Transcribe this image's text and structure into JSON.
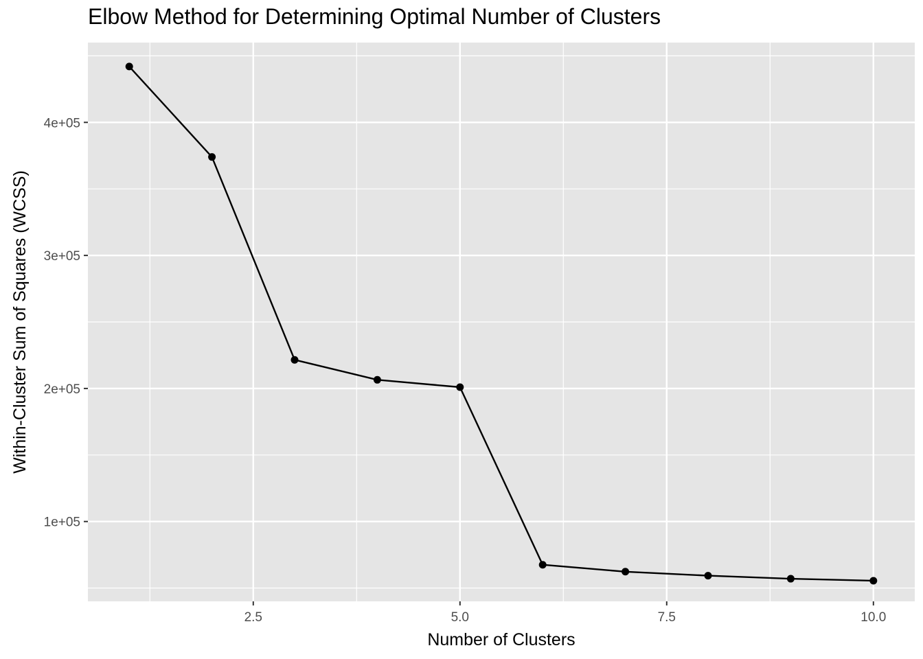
{
  "chart_data": {
    "type": "line",
    "title": "Elbow Method for Determining Optimal Number of Clusters",
    "xlabel": "Number of Clusters",
    "ylabel": "Within-Cluster Sum of Squares (WCSS)",
    "x": [
      1,
      2,
      3,
      4,
      5,
      6,
      7,
      8,
      9,
      10
    ],
    "series": [
      {
        "values": [
          442000,
          374000,
          221500,
          206500,
          201000,
          67500,
          62300,
          59300,
          57000,
          55500
        ]
      }
    ],
    "xlim": [
      0.5,
      10.5
    ],
    "ylim": [
      40000,
      460000
    ],
    "x_ticks": [
      {
        "value": 2.5,
        "label": "2.5"
      },
      {
        "value": 5.0,
        "label": "5.0"
      },
      {
        "value": 7.5,
        "label": "7.5"
      },
      {
        "value": 10.0,
        "label": "10.0"
      }
    ],
    "y_ticks": [
      {
        "value": 100000,
        "label": "1e+05"
      },
      {
        "value": 200000,
        "label": "2e+05"
      },
      {
        "value": 300000,
        "label": "3e+05"
      },
      {
        "value": 400000,
        "label": "4e+05"
      }
    ],
    "grid": true,
    "colors": {
      "panel": "#e5e5e5",
      "grid": "#ffffff",
      "line": "#000000",
      "point": "#000000"
    }
  }
}
